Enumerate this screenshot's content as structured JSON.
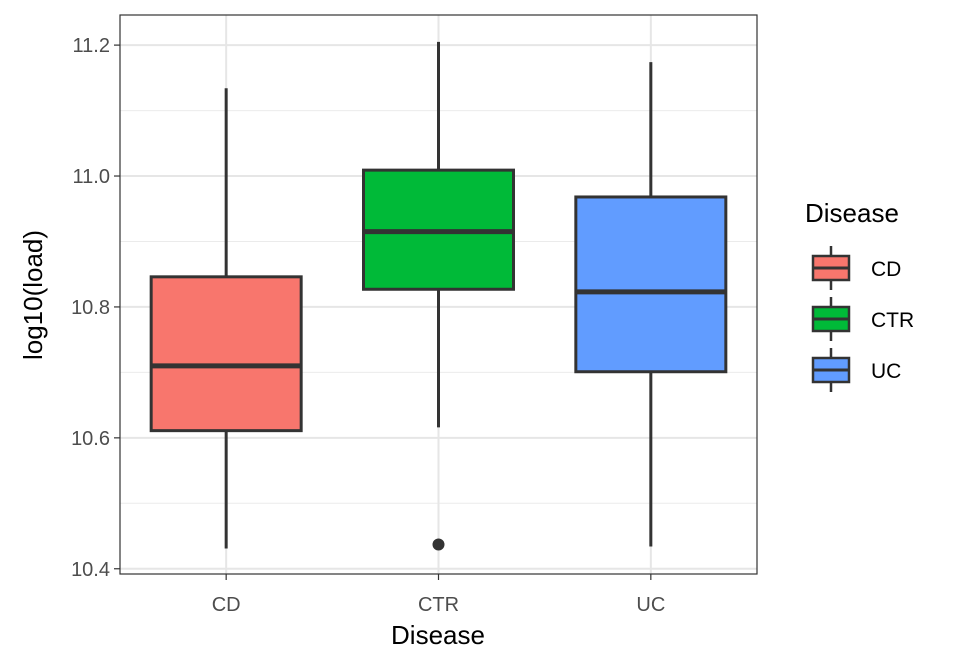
{
  "chart_data": {
    "type": "boxplot",
    "title": "",
    "xlabel": "Disease",
    "ylabel": "log10(load)",
    "categories": [
      "CD",
      "CTR",
      "UC"
    ],
    "ylim": [
      10.392,
      11.246
    ],
    "yticks": [
      10.4,
      10.6,
      10.8,
      11.0,
      11.2
    ],
    "ytick_labels": [
      "10.4",
      "10.6",
      "10.8",
      "11.0",
      "11.2"
    ],
    "grid": true,
    "series": [
      {
        "name": "CD",
        "color": "#F8766D",
        "whisker_low": 10.431,
        "q1": 10.611,
        "median": 10.71,
        "q3": 10.846,
        "whisker_high": 11.134,
        "outliers": []
      },
      {
        "name": "CTR",
        "color": "#00BA38",
        "whisker_low": 10.616,
        "q1": 10.827,
        "median": 10.915,
        "q3": 11.009,
        "whisker_high": 11.205,
        "outliers": [
          10.437
        ]
      },
      {
        "name": "UC",
        "color": "#619CFF",
        "whisker_low": 10.434,
        "q1": 10.701,
        "median": 10.823,
        "q3": 10.968,
        "whisker_high": 11.174,
        "outliers": []
      }
    ],
    "legend": {
      "title": "Disease",
      "position": "right",
      "entries": [
        "CD",
        "CTR",
        "UC"
      ]
    }
  }
}
